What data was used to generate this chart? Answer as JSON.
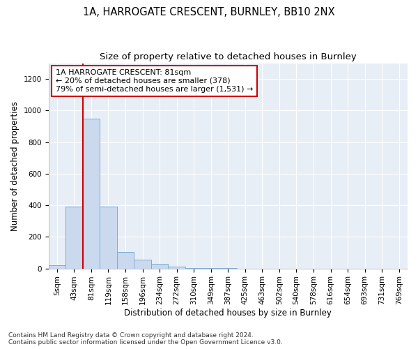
{
  "title1": "1A, HARROGATE CRESCENT, BURNLEY, BB10 2NX",
  "title2": "Size of property relative to detached houses in Burnley",
  "xlabel": "Distribution of detached houses by size in Burnley",
  "ylabel": "Number of detached properties",
  "categories": [
    "5sqm",
    "43sqm",
    "81sqm",
    "119sqm",
    "158sqm",
    "196sqm",
    "234sqm",
    "272sqm",
    "310sqm",
    "349sqm",
    "387sqm",
    "425sqm",
    "463sqm",
    "502sqm",
    "540sqm",
    "578sqm",
    "616sqm",
    "654sqm",
    "693sqm",
    "731sqm",
    "769sqm"
  ],
  "values": [
    20,
    390,
    950,
    390,
    105,
    55,
    28,
    10,
    3,
    1,
    1,
    0,
    0,
    0,
    10,
    0,
    0,
    0,
    0,
    0,
    0
  ],
  "bar_color": "#cad9ed",
  "bar_edge_color": "#7aaed6",
  "highlight_index": 2,
  "red_line_x": 2,
  "annotation_line1": "1A HARROGATE CRESCENT: 81sqm",
  "annotation_line2": "← 20% of detached houses are smaller (378)",
  "annotation_line3": "79% of semi-detached houses are larger (1,531) →",
  "annotation_box_color": "#ffffff",
  "annotation_box_edge": "#cc0000",
  "red_line_color": "#cc0000",
  "ylim": [
    0,
    1300
  ],
  "yticks": [
    0,
    200,
    400,
    600,
    800,
    1000,
    1200
  ],
  "footnote": "Contains HM Land Registry data © Crown copyright and database right 2024.\nContains public sector information licensed under the Open Government Licence v3.0.",
  "plot_bg_color": "#e8eef5",
  "grid_color": "#ffffff",
  "title1_fontsize": 10.5,
  "title2_fontsize": 9.5,
  "xlabel_fontsize": 8.5,
  "ylabel_fontsize": 8.5,
  "tick_fontsize": 7.5,
  "annot_fontsize": 8,
  "footnote_fontsize": 6.5
}
